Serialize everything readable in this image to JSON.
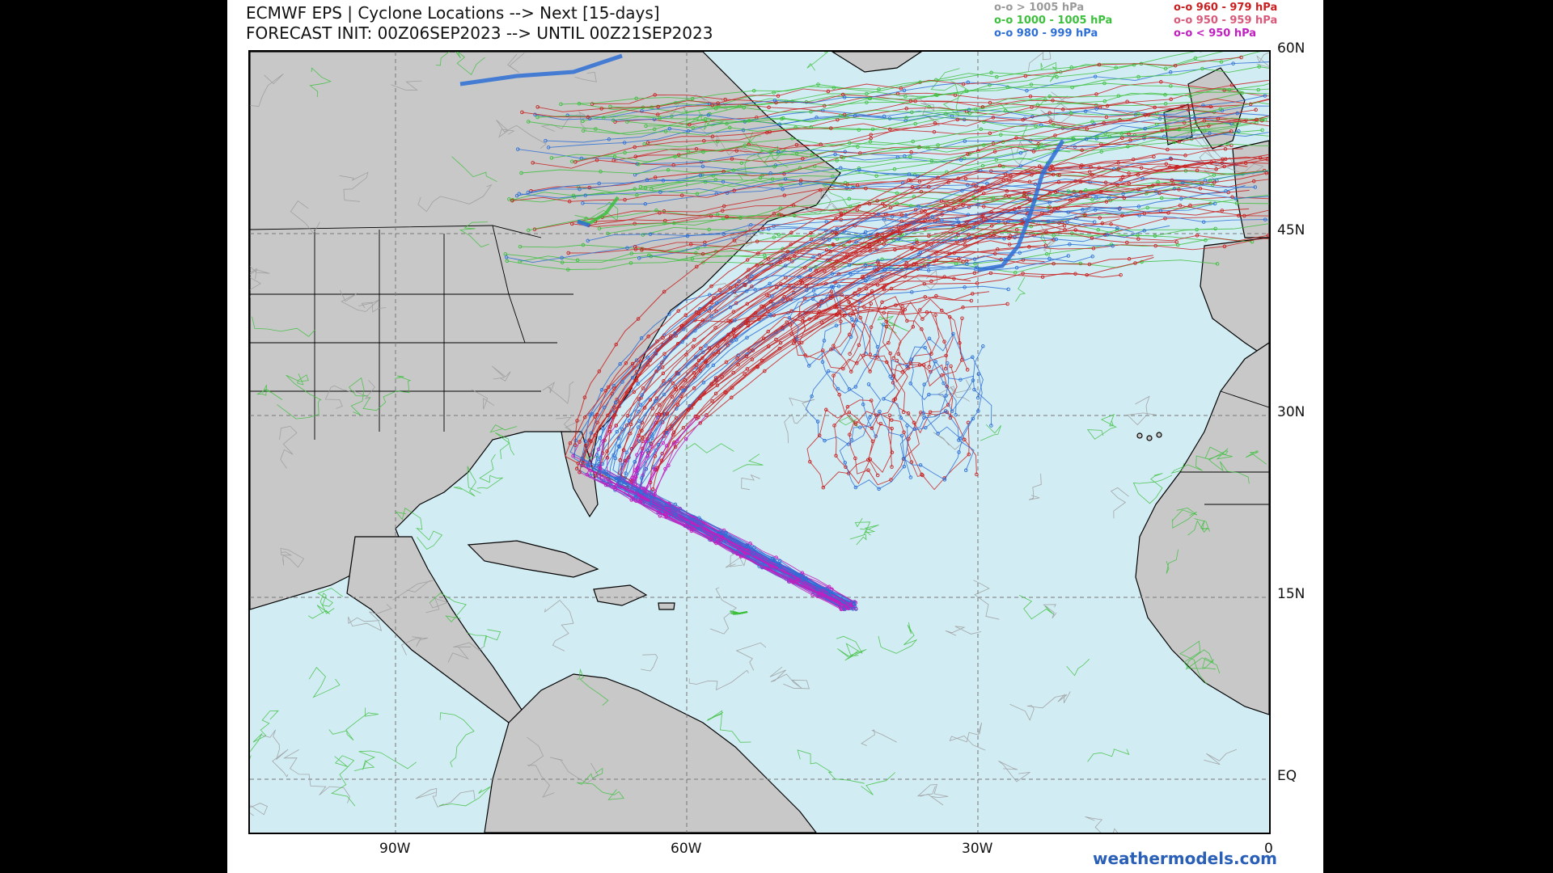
{
  "title": {
    "line1": "ECMWF EPS | Cyclone Locations --> Next [15-days]",
    "line2": "FORECAST INIT: 00Z06SEP2023 --> UNTIL 00Z21SEP2023"
  },
  "legend": [
    {
      "label": "o-o > 1005 hPa",
      "color": "#9a9a9a"
    },
    {
      "label": "o-o 1000 - 1005 hPa",
      "color": "#3cbf3c"
    },
    {
      "label": "o-o 980 - 999 hPa",
      "color": "#2d6fd6"
    },
    {
      "label": "o-o 960 - 979 hPa",
      "color": "#c82020"
    },
    {
      "label": "o-o 950 - 959 hPa",
      "color": "#d85a7a"
    },
    {
      "label": "o-o < 950 hPa",
      "color": "#c020c0"
    }
  ],
  "lat_labels": [
    "60N",
    "45N",
    "30N",
    "15N",
    "EQ"
  ],
  "lon_labels": [
    "90W",
    "60W",
    "30W",
    "0"
  ],
  "credit": "weathermodels.com",
  "colors": {
    "ocean": "#d2ecf3",
    "land": "#c8c8c8",
    "border": "#000000"
  }
}
